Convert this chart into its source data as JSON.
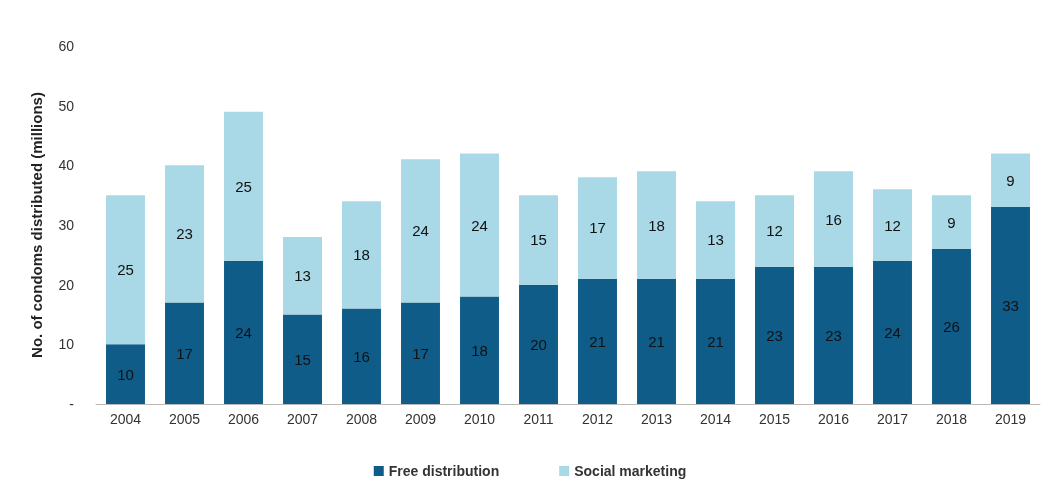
{
  "chart_data": {
    "type": "bar",
    "stacked": true,
    "ylabel": "No. of condoms distributed (millions)",
    "categories": [
      "2004",
      "2005",
      "2006",
      "2007",
      "2008",
      "2009",
      "2010",
      "2011",
      "2012",
      "2013",
      "2014",
      "2015",
      "2016",
      "2017",
      "2018",
      "2019"
    ],
    "series": [
      {
        "name": "Free distribution",
        "color": "#0f5c88",
        "values": [
          10,
          17,
          24,
          15,
          16,
          17,
          18,
          20,
          21,
          21,
          21,
          23,
          23,
          24,
          26,
          33
        ]
      },
      {
        "name": "Social marketing",
        "color": "#a9d8e6",
        "values": [
          25,
          23,
          25,
          13,
          18,
          24,
          24,
          15,
          17,
          18,
          13,
          12,
          16,
          12,
          9,
          9
        ]
      }
    ],
    "ylim": [
      0,
      60
    ],
    "yticks": [
      {
        "value": 0,
        "label": "-"
      },
      10,
      20,
      30,
      40,
      50,
      60
    ],
    "data_labels": true,
    "grid": false,
    "legend": "bottom"
  }
}
